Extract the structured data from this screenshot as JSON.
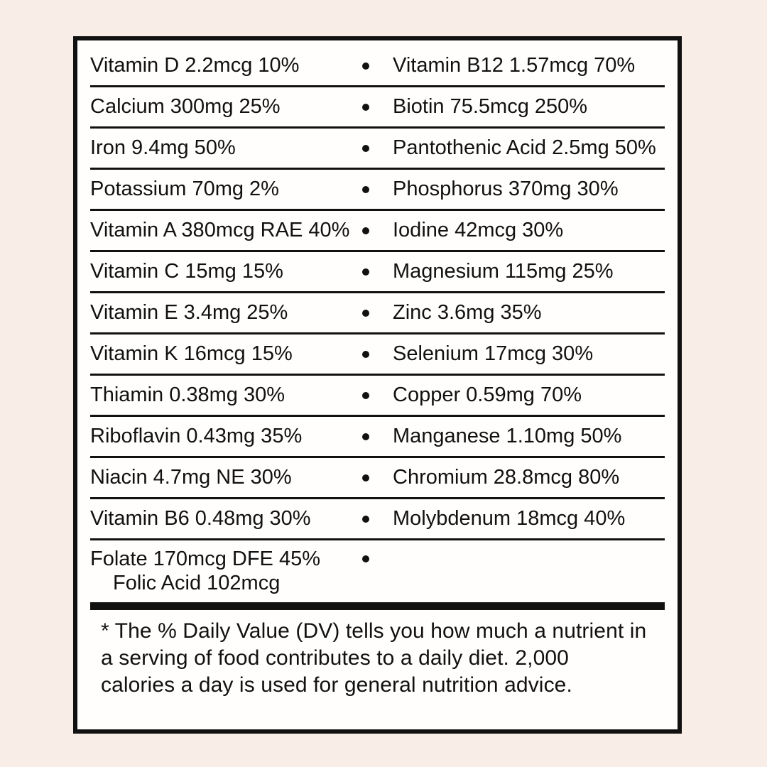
{
  "theme": {
    "bg": "#f8ede7",
    "panel-bg": "#fffefd",
    "ink": "#111111"
  },
  "nutrient_rows": [
    {
      "left": "Vitamin D 2.2mcg 10%",
      "right": "Vitamin B12 1.57mcg 70%"
    },
    {
      "left": "Calcium 300mg 25%",
      "right": "Biotin 75.5mcg 250%"
    },
    {
      "left": "Iron 9.4mg 50%",
      "right": "Pantothenic Acid 2.5mg 50%"
    },
    {
      "left": "Potassium 70mg 2%",
      "right": "Phosphorus 370mg 30%"
    },
    {
      "left": "Vitamin A 380mcg RAE 40%",
      "right": "Iodine 42mcg 30%"
    },
    {
      "left": "Vitamin C 15mg 15%",
      "right": "Magnesium 115mg 25%"
    },
    {
      "left": "Vitamin E 3.4mg 25%",
      "right": "Zinc 3.6mg 35%"
    },
    {
      "left": "Vitamin K 16mcg 15%",
      "right": "Selenium 17mcg 30%"
    },
    {
      "left": "Thiamin 0.38mg 30%",
      "right": "Copper 0.59mg 70%"
    },
    {
      "left": "Riboflavin 0.43mg 35%",
      "right": "Manganese 1.10mg 50%"
    },
    {
      "left": "Niacin 4.7mg NE 30%",
      "right": "Chromium 28.8mcg 80%"
    },
    {
      "left": "Vitamin B6 0.48mg 30%",
      "right": "Molybdenum 18mcg 40%"
    },
    {
      "left": "Folate 170mcg DFE 45%",
      "left_sub": "Folic Acid 102mcg",
      "right": ""
    }
  ],
  "footnote": {
    "lines": [
      "* The % Daily Value (DV) tells you how much a nutrient in",
      "a serving of food contributes to a daily diet. 2,000",
      "calories a day is used for general nutrition advice."
    ]
  }
}
